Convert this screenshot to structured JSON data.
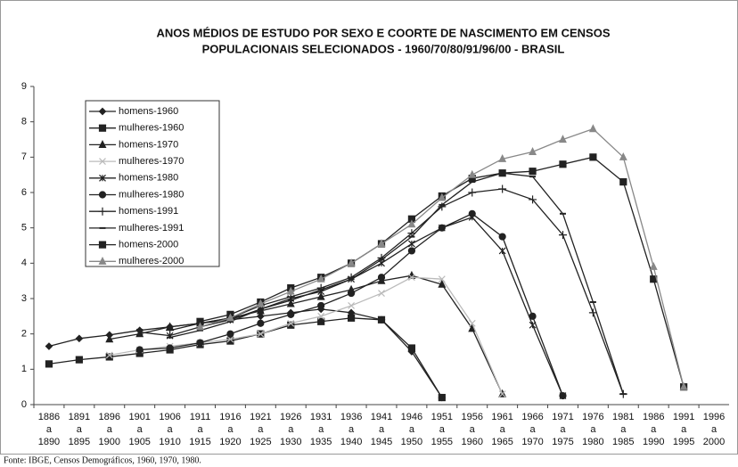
{
  "chart_data": {
    "type": "line",
    "title": [
      "ANOS MÉDIOS DE ESTUDO POR SEXO E COORTE DE NASCIMENTO EM CENSOS",
      "POPULACIONAIS SELECIONADOS - 1960/70/80/91/96/00 - BRASIL"
    ],
    "source": "Fonte: IBGE, Censos Demográficos, 1960, 1970, 1980.",
    "categories": [
      [
        "1886",
        "a",
        "1890"
      ],
      [
        "1891",
        "a",
        "1895"
      ],
      [
        "1896",
        "a",
        "1900"
      ],
      [
        "1901",
        "a",
        "1905"
      ],
      [
        "1906",
        "a",
        "1910"
      ],
      [
        "1911",
        "a",
        "1915"
      ],
      [
        "1916",
        "a",
        "1920"
      ],
      [
        "1921",
        "a",
        "1925"
      ],
      [
        "1926",
        "a",
        "1930"
      ],
      [
        "1931",
        "a",
        "1935"
      ],
      [
        "1936",
        "a",
        "1940"
      ],
      [
        "1941",
        "a",
        "1945"
      ],
      [
        "1946",
        "a",
        "1950"
      ],
      [
        "1951",
        "a",
        "1955"
      ],
      [
        "1956",
        "a",
        "1960"
      ],
      [
        "1961",
        "a",
        "1965"
      ],
      [
        "1966",
        "a",
        "1970"
      ],
      [
        "1971",
        "a",
        "1975"
      ],
      [
        "1976",
        "a",
        "1980"
      ],
      [
        "1981",
        "a",
        "1985"
      ],
      [
        "1986",
        "a",
        "1990"
      ],
      [
        "1991",
        "a",
        "1995"
      ],
      [
        "1996",
        "a",
        "2000"
      ]
    ],
    "ylim": [
      0,
      9
    ],
    "yticks": [
      0,
      1,
      2,
      3,
      4,
      5,
      6,
      7,
      8,
      9
    ],
    "series": [
      {
        "name": "homens-1960",
        "color": "#222",
        "marker": "diamond",
        "values": [
          1.65,
          1.87,
          1.97,
          2.1,
          2.2,
          2.3,
          2.4,
          2.5,
          2.6,
          2.7,
          2.6,
          2.4,
          1.5,
          0.2,
          null,
          null,
          null,
          null,
          null,
          null,
          null,
          null,
          null
        ]
      },
      {
        "name": "mulheres-1960",
        "color": "#222",
        "marker": "square",
        "values": [
          1.15,
          1.27,
          1.35,
          1.45,
          1.55,
          1.7,
          1.8,
          2.0,
          2.25,
          2.35,
          2.45,
          2.4,
          1.6,
          0.2,
          null,
          null,
          null,
          null,
          null,
          null,
          null,
          null,
          null
        ]
      },
      {
        "name": "homens-1970",
        "color": "#222",
        "marker": "triangle",
        "values": [
          null,
          null,
          1.85,
          2.0,
          2.2,
          2.3,
          2.45,
          2.65,
          2.85,
          3.05,
          3.25,
          3.5,
          3.65,
          3.4,
          2.15,
          0.3,
          null,
          null,
          null,
          null,
          null,
          null,
          null
        ]
      },
      {
        "name": "mulheres-1970",
        "color": "#bbb",
        "marker": "x",
        "values": [
          null,
          null,
          1.4,
          1.55,
          1.65,
          1.75,
          1.85,
          2.0,
          2.3,
          2.5,
          2.8,
          3.15,
          3.6,
          3.55,
          2.3,
          0.3,
          null,
          null,
          null,
          null,
          null,
          null,
          null
        ]
      },
      {
        "name": "homens-1980",
        "color": "#222",
        "marker": "asterisk",
        "values": [
          null,
          null,
          null,
          2.05,
          1.95,
          2.2,
          2.4,
          2.7,
          3.0,
          3.2,
          3.55,
          4.0,
          4.55,
          5.0,
          5.3,
          4.35,
          2.25,
          0.25,
          null,
          null,
          null,
          null,
          null
        ]
      },
      {
        "name": "mulheres-1980",
        "color": "#222",
        "marker": "circle",
        "values": [
          null,
          null,
          null,
          1.55,
          1.6,
          1.75,
          2.0,
          2.3,
          2.55,
          2.8,
          3.15,
          3.6,
          4.35,
          5.0,
          5.4,
          4.75,
          2.5,
          0.25,
          null,
          null,
          null,
          null,
          null
        ]
      },
      {
        "name": "homens-1991",
        "color": "#222",
        "marker": "plus",
        "values": [
          null,
          null,
          null,
          null,
          2.1,
          2.3,
          2.45,
          2.8,
          3.05,
          3.3,
          3.6,
          4.15,
          4.85,
          5.6,
          6.0,
          6.1,
          5.8,
          4.8,
          2.6,
          0.3,
          null,
          null,
          null
        ]
      },
      {
        "name": "mulheres-1991",
        "color": "#222",
        "marker": "dash",
        "values": [
          null,
          null,
          null,
          null,
          1.9,
          2.1,
          2.35,
          2.7,
          2.95,
          3.25,
          3.55,
          4.1,
          4.75,
          5.65,
          6.3,
          6.55,
          6.45,
          5.4,
          2.9,
          0.3,
          null,
          null,
          null
        ]
      },
      {
        "name": "homens-2000",
        "color": "#222",
        "marker": "square",
        "values": [
          null,
          null,
          null,
          null,
          null,
          2.35,
          2.55,
          2.9,
          3.3,
          3.6,
          4.0,
          4.55,
          5.25,
          5.9,
          6.4,
          6.55,
          6.6,
          6.8,
          7.0,
          6.3,
          3.55,
          0.5,
          null
        ]
      },
      {
        "name": "mulheres-2000",
        "color": "#888",
        "marker": "triangle",
        "values": [
          null,
          null,
          null,
          null,
          null,
          2.2,
          2.45,
          2.85,
          3.2,
          3.55,
          4.0,
          4.55,
          5.1,
          5.85,
          6.5,
          6.95,
          7.15,
          7.5,
          7.8,
          7.0,
          3.9,
          0.5,
          null
        ]
      }
    ]
  }
}
